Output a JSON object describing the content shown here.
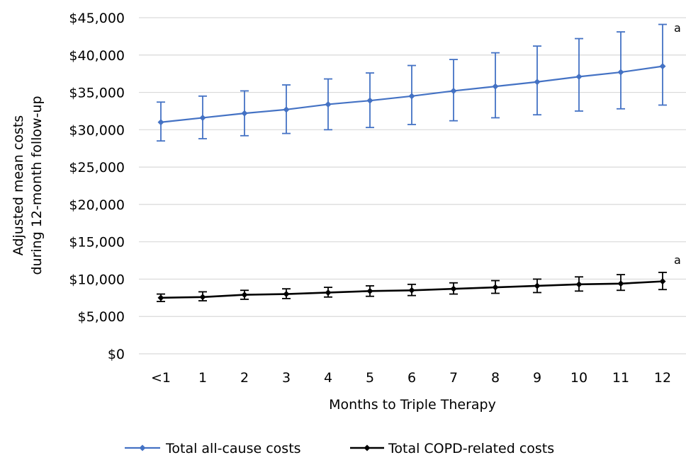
{
  "chart_data": {
    "type": "line",
    "title": "",
    "xlabel": "Months to Triple Therapy",
    "ylabel_line1": "Adjusted mean costs",
    "ylabel_line2": "during 12-month follow-up",
    "categories": [
      "<1",
      "1",
      "2",
      "3",
      "4",
      "5",
      "6",
      "7",
      "8",
      "9",
      "10",
      "11",
      "12"
    ],
    "ylim": [
      0,
      45000
    ],
    "yticks": [
      0,
      5000,
      10000,
      15000,
      20000,
      25000,
      30000,
      35000,
      40000,
      45000
    ],
    "ytick_labels": [
      "$0",
      "$5,000",
      "$10,000",
      "$15,000",
      "$20,000",
      "$25,000",
      "$30,000",
      "$35,000",
      "$40,000",
      "$45,000"
    ],
    "grid": "horizontal",
    "legend_position": "bottom",
    "series": [
      {
        "name": "Total all-cause costs",
        "color": "#4472C4",
        "marker": "diamond",
        "values": [
          31000,
          31600,
          32200,
          32700,
          33400,
          33900,
          34500,
          35200,
          35800,
          36400,
          37100,
          37700,
          38500
        ],
        "error_low": [
          28500,
          28800,
          29200,
          29500,
          30000,
          30300,
          30700,
          31200,
          31600,
          32000,
          32500,
          32800,
          33300
        ],
        "error_high": [
          33700,
          34500,
          35200,
          36000,
          36800,
          37600,
          38600,
          39400,
          40300,
          41200,
          42200,
          43100,
          44100
        ],
        "annotation": "a"
      },
      {
        "name": "Total COPD-related costs",
        "color": "#000000",
        "marker": "diamond",
        "values": [
          7500,
          7600,
          7900,
          8000,
          8200,
          8400,
          8500,
          8700,
          8900,
          9100,
          9300,
          9400,
          9700
        ],
        "error_low": [
          7000,
          7100,
          7300,
          7400,
          7600,
          7700,
          7800,
          8000,
          8100,
          8200,
          8400,
          8500,
          8600
        ],
        "error_high": [
          8000,
          8300,
          8500,
          8700,
          8900,
          9100,
          9300,
          9500,
          9800,
          10000,
          10300,
          10600,
          10900
        ],
        "annotation": "a"
      }
    ]
  }
}
